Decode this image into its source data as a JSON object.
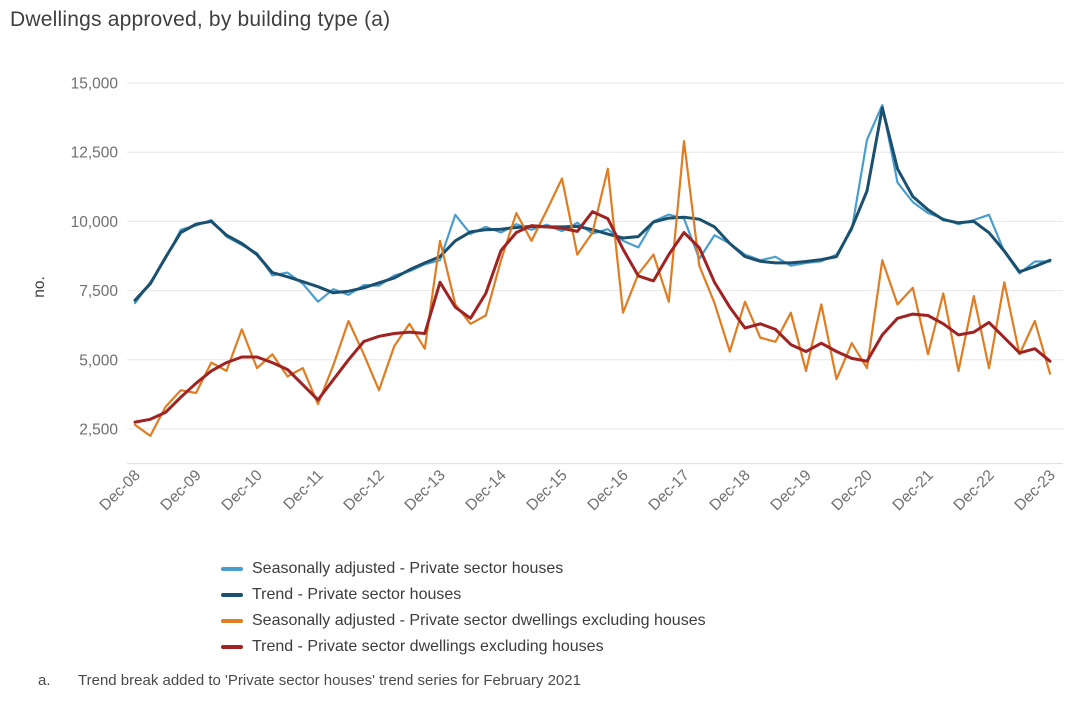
{
  "page": {
    "footnote_marker": "a.",
    "footnote_text": "Trend break added to 'Private sector houses' trend series for February 2021"
  },
  "chart_data": {
    "type": "line",
    "title": "Dwellings approved, by building type (a)",
    "ylabel": "no.",
    "xlabel": "",
    "grid": "horizontal",
    "legend_position": "bottom-left",
    "ylim": [
      1250,
      15500
    ],
    "y_ticks": [
      2500,
      5000,
      7500,
      10000,
      12500,
      15000
    ],
    "x_tick_labels": [
      "Dec-08",
      "Dec-09",
      "Dec-10",
      "Dec-11",
      "Dec-12",
      "Dec-13",
      "Dec-14",
      "Dec-15",
      "Dec-16",
      "Dec-17",
      "Dec-18",
      "Dec-19",
      "Dec-20",
      "Dec-21",
      "Dec-22",
      "Dec-23"
    ],
    "x_labels": [
      "Dec-08",
      "Mar-09",
      "Jun-09",
      "Sep-09",
      "Dec-09",
      "Mar-10",
      "Jun-10",
      "Sep-10",
      "Dec-10",
      "Mar-11",
      "Jun-11",
      "Sep-11",
      "Dec-11",
      "Mar-12",
      "Jun-12",
      "Sep-12",
      "Dec-12",
      "Mar-13",
      "Jun-13",
      "Sep-13",
      "Dec-13",
      "Mar-14",
      "Jun-14",
      "Sep-14",
      "Dec-14",
      "Mar-15",
      "Jun-15",
      "Sep-15",
      "Dec-15",
      "Mar-16",
      "Jun-16",
      "Sep-16",
      "Dec-16",
      "Mar-17",
      "Jun-17",
      "Sep-17",
      "Dec-17",
      "Mar-18",
      "Jun-18",
      "Sep-18",
      "Dec-18",
      "Mar-19",
      "Jun-19",
      "Sep-19",
      "Dec-19",
      "Mar-20",
      "Jun-20",
      "Sep-20",
      "Dec-20",
      "Mar-21",
      "Jun-21",
      "Sep-21",
      "Dec-21",
      "Mar-22",
      "Jun-22",
      "Sep-22",
      "Dec-22",
      "Mar-23",
      "Jun-23",
      "Sep-23",
      "Dec-23"
    ],
    "series": [
      {
        "name": "Seasonally adjusted - Private sector houses",
        "color": "#4A9ECD",
        "width": 2.2,
        "values": [
          7050,
          7800,
          8650,
          9700,
          9850,
          10050,
          9450,
          9150,
          8850,
          8050,
          8150,
          7750,
          7100,
          7550,
          7350,
          7700,
          7680,
          8050,
          8200,
          8450,
          8600,
          10240,
          9550,
          9800,
          9600,
          9900,
          9700,
          9880,
          9650,
          9950,
          9560,
          9720,
          9300,
          9060,
          10000,
          10250,
          10100,
          8650,
          9500,
          9200,
          8800,
          8600,
          8720,
          8400,
          8500,
          8560,
          8800,
          9700,
          12950,
          14200,
          11400,
          10700,
          10300,
          10100,
          9900,
          10050,
          10240,
          8900,
          8120,
          8550,
          8550
        ]
      },
      {
        "name": "Trend - Private sector houses",
        "color": "#1B506E",
        "width": 3,
        "values": [
          7150,
          7750,
          8700,
          9600,
          9900,
          10000,
          9500,
          9200,
          8800,
          8150,
          8000,
          7820,
          7640,
          7420,
          7480,
          7600,
          7780,
          7960,
          8250,
          8500,
          8730,
          9300,
          9620,
          9700,
          9720,
          9780,
          9820,
          9800,
          9800,
          9820,
          9700,
          9540,
          9400,
          9450,
          9980,
          10120,
          10150,
          10080,
          9800,
          9200,
          8730,
          8560,
          8500,
          8500,
          8550,
          8620,
          8730,
          9770,
          11100,
          14100,
          11900,
          10900,
          10420,
          10060,
          9950,
          10000,
          9590,
          8930,
          8180,
          8370,
          8600
        ]
      },
      {
        "name": "Seasonally adjusted - Private sector dwellings excluding houses",
        "color": "#E07C21",
        "width": 2.2,
        "values": [
          2650,
          2250,
          3300,
          3900,
          3800,
          4900,
          4600,
          6100,
          4700,
          5200,
          4400,
          4700,
          3400,
          4800,
          6400,
          5200,
          3900,
          5500,
          6300,
          5400,
          9300,
          7000,
          6300,
          6600,
          8600,
          10300,
          9300,
          10400,
          11550,
          8800,
          9600,
          11900,
          6700,
          8100,
          8800,
          7100,
          12900,
          8400,
          7050,
          5300,
          7100,
          5800,
          5650,
          6700,
          4600,
          7000,
          4300,
          5600,
          4700,
          8600,
          7000,
          7600,
          5200,
          7400,
          4600,
          7300,
          4700,
          7800,
          5200,
          6400,
          4500
        ]
      },
      {
        "name": "Trend - Private sector dwellings excluding houses",
        "color": "#A02323",
        "width": 3,
        "values": [
          2750,
          2850,
          3100,
          3650,
          4150,
          4600,
          4900,
          5100,
          5100,
          4900,
          4650,
          4100,
          3550,
          4280,
          5000,
          5660,
          5850,
          5950,
          6000,
          5950,
          7800,
          6900,
          6500,
          7400,
          8950,
          9600,
          9850,
          9800,
          9750,
          9640,
          10350,
          10100,
          9000,
          8030,
          7850,
          8800,
          9600,
          9050,
          7800,
          6900,
          6150,
          6300,
          6100,
          5550,
          5300,
          5600,
          5300,
          5050,
          4950,
          5900,
          6500,
          6650,
          6600,
          6300,
          5900,
          6000,
          6350,
          5800,
          5250,
          5400,
          4950
        ]
      }
    ]
  }
}
